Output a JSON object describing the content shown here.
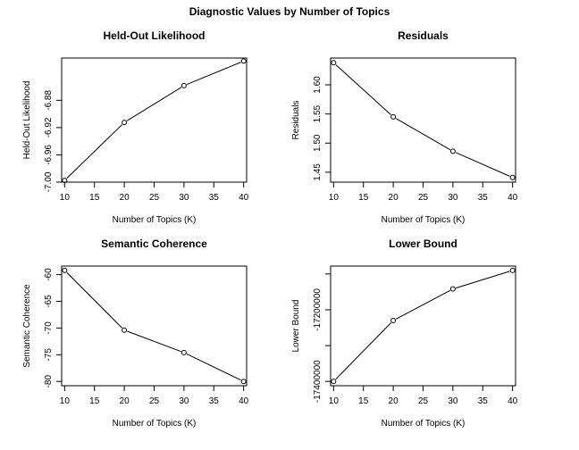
{
  "title": "Diagnostic Values by Number of Topics",
  "chart_data": [
    {
      "type": "line",
      "title": "Held-Out Likelihood",
      "xlabel": "Number of Topics (K)",
      "ylabel": "Held-Out Likelihood",
      "x": [
        10,
        20,
        30,
        40
      ],
      "values": [
        -6.9975,
        -6.9125,
        -6.8585,
        -6.8225
      ],
      "xlim": [
        9.5,
        40.5
      ],
      "ylim": [
        -7.0,
        -6.818
      ],
      "xticks": [
        10,
        15,
        20,
        25,
        30,
        35,
        40
      ],
      "yticks": [
        -7.0,
        -6.96,
        -6.92,
        -6.88
      ],
      "xtick_labels": [
        "10",
        "15",
        "20",
        "25",
        "30",
        "35",
        "40"
      ],
      "ytick_labels": [
        "-7.00",
        "-6.96",
        "-6.92",
        "-6.88"
      ],
      "markers": "open-circle",
      "grid": false
    },
    {
      "type": "line",
      "title": "Residuals",
      "xlabel": "Number of Topics (K)",
      "ylabel": "Residuals",
      "x": [
        10,
        20,
        30,
        40
      ],
      "values": [
        1.638,
        1.545,
        1.486,
        1.441
      ],
      "xlim": [
        9.5,
        40.5
      ],
      "ylim": [
        1.433,
        1.646
      ],
      "xticks": [
        10,
        15,
        20,
        25,
        30,
        35,
        40
      ],
      "yticks": [
        1.45,
        1.5,
        1.55,
        1.6
      ],
      "xtick_labels": [
        "10",
        "15",
        "20",
        "25",
        "30",
        "35",
        "40"
      ],
      "ytick_labels": [
        "1.45",
        "1.50",
        "1.55",
        "1.60"
      ],
      "markers": "open-circle",
      "grid": false
    },
    {
      "type": "line",
      "title": "Semantic Coherence",
      "xlabel": "Number of Topics (K)",
      "ylabel": "Semantic Coherence",
      "x": [
        10,
        20,
        30,
        40
      ],
      "values": [
        -59.2,
        -70.4,
        -74.6,
        -80.0
      ],
      "xlim": [
        9.5,
        40.5
      ],
      "ylim": [
        -80.8,
        -58.4
      ],
      "xticks": [
        10,
        15,
        20,
        25,
        30,
        35,
        40
      ],
      "yticks": [
        -80,
        -75,
        -70,
        -65,
        -60
      ],
      "xtick_labels": [
        "10",
        "15",
        "20",
        "25",
        "30",
        "35",
        "40"
      ],
      "ytick_labels": [
        "-80",
        "-75",
        "-70",
        "-65",
        "-60"
      ],
      "markers": "open-circle",
      "grid": false
    },
    {
      "type": "line",
      "title": "Lower Bound",
      "xlabel": "Number of Topics (K)",
      "ylabel": "Lower Bound",
      "x": [
        10,
        20,
        30,
        40
      ],
      "values": [
        -17400000,
        -17230000,
        -17142000,
        -17090000
      ],
      "xlim": [
        9.5,
        40.5
      ],
      "ylim": [
        -17412000,
        -17078000
      ],
      "xticks": [
        10,
        15,
        20,
        25,
        30,
        35,
        40
      ],
      "yticks": [
        -17400000,
        -17200000
      ],
      "xtick_labels": [
        "10",
        "15",
        "20",
        "25",
        "30",
        "35",
        "40"
      ],
      "ytick_labels": [
        "-17400000",
        "-17200000"
      ],
      "minor_yticks": [
        -17300000,
        -17100000
      ],
      "markers": "open-circle",
      "grid": false
    }
  ]
}
